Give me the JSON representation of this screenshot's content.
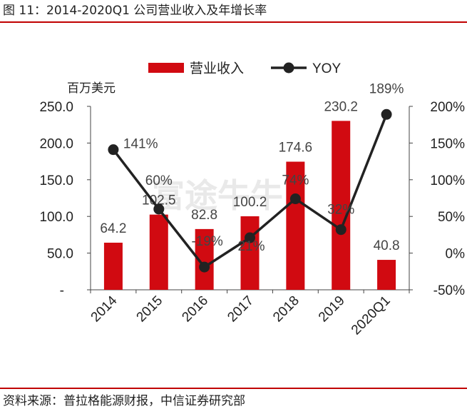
{
  "figure": {
    "title": "图 11：2014-2020Q1 公司营业收入及年增长率",
    "source": "资料来源：普拉格能源财报，中信证券研究部"
  },
  "colors": {
    "bar": "#d10a11",
    "line": "#222222",
    "rule": "#c00000",
    "text": "#222222"
  },
  "chart_data": {
    "type": "bar",
    "categories": [
      "2014",
      "2015",
      "2016",
      "2017",
      "2018",
      "2019",
      "2020Q1"
    ],
    "series": [
      {
        "name": "营业收入",
        "type": "bar",
        "axis": "left",
        "values": [
          64.2,
          102.5,
          82.8,
          100.2,
          174.6,
          230.2,
          40.8
        ],
        "labels": [
          "64.2",
          "102.5",
          "82.8",
          "100.2",
          "174.6",
          "230.2",
          "40.8"
        ]
      },
      {
        "name": "YOY",
        "type": "line",
        "axis": "right",
        "values": [
          141,
          60,
          -19,
          21,
          74,
          32,
          189
        ],
        "labels": [
          "141%",
          "60%",
          "-19%",
          "21%",
          "74%",
          "32%",
          "189%"
        ]
      }
    ],
    "y_left": {
      "unit_label": "百万美元",
      "range": [
        0,
        250
      ],
      "ticks": [
        "-",
        "50.0",
        "100.0",
        "150.0",
        "200.0",
        "250.0"
      ]
    },
    "y_right": {
      "range": [
        -50,
        200
      ],
      "ticks": [
        "-50%",
        "0%",
        "50%",
        "100%",
        "150%",
        "200%"
      ]
    },
    "legend": {
      "position": "top",
      "items": [
        "营业收入",
        "YOY"
      ]
    },
    "watermark": "富途牛牛",
    "grid": false
  }
}
